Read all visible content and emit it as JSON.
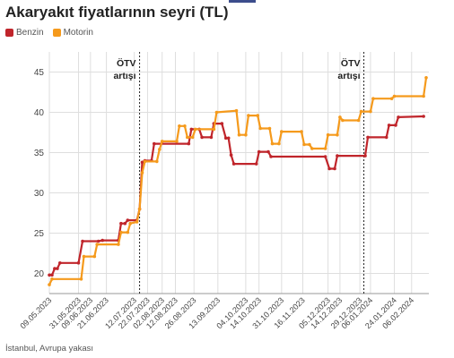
{
  "title": "Akaryakıt fiyatlarının seyri (TL)",
  "footer": "İstanbul, Avrupa yakası",
  "colors": {
    "benzin": "#c0252b",
    "motorin": "#f59a1c",
    "grid": "#dedede",
    "axis": "#222"
  },
  "chart_data": {
    "type": "line",
    "title": "Akaryakıt fiyatlarının seyri (TL)",
    "xlabel": "",
    "ylabel": "",
    "ylim": [
      17.5,
      47.5
    ],
    "xlim": [
      "2023-05-09",
      "2024-02-19"
    ],
    "yticks": [
      20,
      25,
      30,
      35,
      40,
      45
    ],
    "xticks": [
      "09.05.2023",
      "31.05.2023",
      "09.06.2023",
      "21.06.2023",
      "12.07.2023",
      "22.07.2023",
      "02.08.2023",
      "12.08.2023",
      "26.08.2023",
      "13.09.2023",
      "04.10.2023",
      "14.10.2023",
      "31.10.2023",
      "16.11.2023",
      "05.12.2023",
      "14.12.2023",
      "29.12.2023",
      "06.01.2024",
      "24.01.2024",
      "06.02.2024"
    ],
    "grid": true,
    "legend": "top-left",
    "annotations": [
      {
        "date": "2023-07-16",
        "text1": "ÖTV",
        "text2": "artışı"
      },
      {
        "date": "2024-01-01",
        "text1": "ÖTV",
        "text2": "artışı"
      }
    ],
    "series": [
      {
        "name": "Benzin",
        "color": "#c0252b",
        "points": [
          [
            "2023-05-09",
            19.8
          ],
          [
            "2023-05-11",
            19.8
          ],
          [
            "2023-05-13",
            20.6
          ],
          [
            "2023-05-15",
            20.6
          ],
          [
            "2023-05-17",
            21.3
          ],
          [
            "2023-05-31",
            21.3
          ],
          [
            "2023-06-03",
            24.0
          ],
          [
            "2023-06-15",
            24.0
          ],
          [
            "2023-06-18",
            24.1
          ],
          [
            "2023-06-30",
            24.1
          ],
          [
            "2023-07-02",
            26.2
          ],
          [
            "2023-07-05",
            26.2
          ],
          [
            "2023-07-07",
            26.6
          ],
          [
            "2023-07-14",
            26.6
          ],
          [
            "2023-07-16",
            28.0
          ],
          [
            "2023-07-18",
            33.8
          ],
          [
            "2023-07-20",
            34.0
          ],
          [
            "2023-07-25",
            34.0
          ],
          [
            "2023-07-27",
            36.1
          ],
          [
            "2023-08-22",
            36.1
          ],
          [
            "2023-08-24",
            37.9
          ],
          [
            "2023-08-30",
            37.9
          ],
          [
            "2023-09-01",
            36.9
          ],
          [
            "2023-09-08",
            36.9
          ],
          [
            "2023-09-10",
            38.6
          ],
          [
            "2023-09-16",
            38.6
          ],
          [
            "2023-09-19",
            36.8
          ],
          [
            "2023-09-21",
            36.8
          ],
          [
            "2023-09-23",
            34.7
          ],
          [
            "2023-09-25",
            33.6
          ],
          [
            "2023-10-12",
            33.6
          ],
          [
            "2023-10-14",
            35.1
          ],
          [
            "2023-10-21",
            35.1
          ],
          [
            "2023-10-23",
            34.5
          ],
          [
            "2023-12-03",
            34.5
          ],
          [
            "2023-12-06",
            33.0
          ],
          [
            "2023-12-10",
            33.0
          ],
          [
            "2023-12-12",
            34.6
          ],
          [
            "2024-01-02",
            34.6
          ],
          [
            "2024-01-04",
            36.9
          ],
          [
            "2024-01-18",
            36.9
          ],
          [
            "2024-01-20",
            38.4
          ],
          [
            "2024-01-25",
            38.4
          ],
          [
            "2024-01-27",
            39.4
          ],
          [
            "2024-02-15",
            39.5
          ]
        ]
      },
      {
        "name": "Motorin",
        "color": "#f59a1c",
        "points": [
          [
            "2023-05-09",
            18.6
          ],
          [
            "2023-05-11",
            19.3
          ],
          [
            "2023-06-02",
            19.3
          ],
          [
            "2023-06-04",
            22.1
          ],
          [
            "2023-06-12",
            22.1
          ],
          [
            "2023-06-14",
            23.6
          ],
          [
            "2023-06-30",
            23.6
          ],
          [
            "2023-07-02",
            25.1
          ],
          [
            "2023-07-07",
            25.1
          ],
          [
            "2023-07-09",
            26.2
          ],
          [
            "2023-07-14",
            26.4
          ],
          [
            "2023-07-16",
            28.0
          ],
          [
            "2023-07-18",
            32.5
          ],
          [
            "2023-07-20",
            33.9
          ],
          [
            "2023-07-29",
            33.9
          ],
          [
            "2023-07-31",
            35.4
          ],
          [
            "2023-08-02",
            36.4
          ],
          [
            "2023-08-13",
            36.4
          ],
          [
            "2023-08-15",
            38.3
          ],
          [
            "2023-08-19",
            38.3
          ],
          [
            "2023-08-21",
            36.9
          ],
          [
            "2023-08-25",
            36.9
          ],
          [
            "2023-08-27",
            37.9
          ],
          [
            "2023-09-10",
            37.9
          ],
          [
            "2023-09-12",
            40.0
          ],
          [
            "2023-09-27",
            40.2
          ],
          [
            "2023-09-29",
            37.2
          ],
          [
            "2023-10-04",
            37.2
          ],
          [
            "2023-10-06",
            39.6
          ],
          [
            "2023-10-13",
            39.6
          ],
          [
            "2023-10-15",
            38.0
          ],
          [
            "2023-10-22",
            38.0
          ],
          [
            "2023-10-24",
            36.1
          ],
          [
            "2023-10-29",
            36.1
          ],
          [
            "2023-10-31",
            37.6
          ],
          [
            "2023-11-15",
            37.6
          ],
          [
            "2023-11-17",
            36.0
          ],
          [
            "2023-11-21",
            36.0
          ],
          [
            "2023-11-23",
            35.5
          ],
          [
            "2023-12-03",
            35.5
          ],
          [
            "2023-12-05",
            37.2
          ],
          [
            "2023-12-12",
            37.2
          ],
          [
            "2023-12-14",
            39.4
          ],
          [
            "2023-12-16",
            39.0
          ],
          [
            "2023-12-28",
            39.0
          ],
          [
            "2023-12-30",
            40.1
          ],
          [
            "2024-01-06",
            40.1
          ],
          [
            "2024-01-08",
            41.7
          ],
          [
            "2024-01-22",
            41.7
          ],
          [
            "2024-01-24",
            42.0
          ],
          [
            "2024-02-15",
            42.0
          ],
          [
            "2024-02-17",
            44.3
          ]
        ]
      }
    ]
  }
}
